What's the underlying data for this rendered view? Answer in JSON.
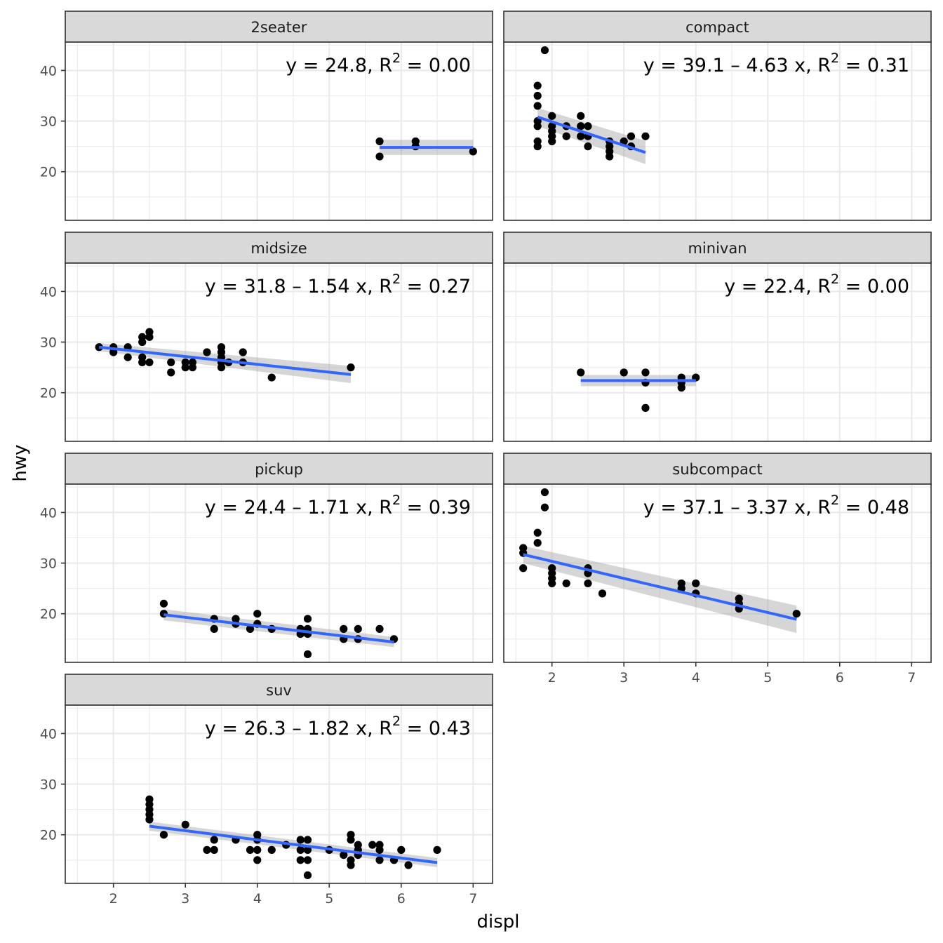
{
  "chart_data": {
    "type": "scatter",
    "xlabel": "displ",
    "ylabel": "hwy",
    "xlim": [
      1.33,
      7.27
    ],
    "ylim": [
      10.4,
      45.6
    ],
    "x_ticks": [
      2,
      3,
      4,
      5,
      6,
      7
    ],
    "y_ticks": [
      20,
      30,
      40
    ],
    "grid": true,
    "facets": [
      {
        "name": "2seater",
        "equation": {
          "main": "y = 24.8, R",
          "sup": "2",
          "tail": " = 0.00"
        },
        "fit": {
          "x": [
            5.7,
            7.0
          ],
          "y": [
            24.8,
            24.8
          ],
          "lo": [
            23.3,
            23.3
          ],
          "hi": [
            26.3,
            26.3
          ]
        },
        "points": [
          [
            5.7,
            26
          ],
          [
            5.7,
            23
          ],
          [
            6.2,
            26
          ],
          [
            6.2,
            25
          ],
          [
            7.0,
            24
          ]
        ]
      },
      {
        "name": "compact",
        "equation": {
          "main": "y = 39.1 – 4.63 x, R",
          "sup": "2",
          "tail": " = 0.31"
        },
        "fit": {
          "x": [
            1.8,
            3.3
          ],
          "y": [
            30.8,
            23.8
          ],
          "lo": [
            29.0,
            21.5
          ],
          "hi": [
            32.6,
            26.1
          ]
        },
        "points": [
          [
            1.9,
            44
          ],
          [
            1.8,
            37
          ],
          [
            1.8,
            35
          ],
          [
            1.8,
            33
          ],
          [
            1.8,
            30
          ],
          [
            1.8,
            29
          ],
          [
            1.8,
            26
          ],
          [
            1.8,
            25
          ],
          [
            2.0,
            31
          ],
          [
            2.0,
            29
          ],
          [
            2.0,
            28
          ],
          [
            2.0,
            27
          ],
          [
            2.0,
            26
          ],
          [
            2.2,
            29
          ],
          [
            2.2,
            27
          ],
          [
            2.4,
            31
          ],
          [
            2.4,
            29
          ],
          [
            2.4,
            27
          ],
          [
            2.5,
            29
          ],
          [
            2.5,
            27
          ],
          [
            2.5,
            25
          ],
          [
            2.8,
            26
          ],
          [
            2.8,
            25
          ],
          [
            2.8,
            24
          ],
          [
            2.8,
            23
          ],
          [
            3.0,
            26
          ],
          [
            3.1,
            27
          ],
          [
            3.1,
            25
          ],
          [
            3.3,
            27
          ]
        ]
      },
      {
        "name": "midsize",
        "equation": {
          "main": "y = 31.8 – 1.54 x, R",
          "sup": "2",
          "tail": " = 0.27"
        },
        "fit": {
          "x": [
            1.8,
            5.3
          ],
          "y": [
            29.0,
            23.6
          ],
          "lo": [
            28.2,
            21.9
          ],
          "hi": [
            29.8,
            25.3
          ]
        },
        "points": [
          [
            1.8,
            29
          ],
          [
            2.0,
            29
          ],
          [
            2.0,
            28
          ],
          [
            2.2,
            29
          ],
          [
            2.2,
            27
          ],
          [
            2.4,
            31
          ],
          [
            2.4,
            30
          ],
          [
            2.4,
            27
          ],
          [
            2.4,
            26
          ],
          [
            2.5,
            32
          ],
          [
            2.5,
            31
          ],
          [
            2.5,
            26
          ],
          [
            2.8,
            26
          ],
          [
            2.8,
            24
          ],
          [
            3.0,
            26
          ],
          [
            3.0,
            25
          ],
          [
            3.1,
            26
          ],
          [
            3.1,
            25
          ],
          [
            3.3,
            28
          ],
          [
            3.5,
            29
          ],
          [
            3.5,
            28
          ],
          [
            3.5,
            27
          ],
          [
            3.5,
            26
          ],
          [
            3.5,
            25
          ],
          [
            3.6,
            26
          ],
          [
            3.8,
            28
          ],
          [
            3.8,
            26
          ],
          [
            4.2,
            23
          ],
          [
            5.3,
            25
          ]
        ]
      },
      {
        "name": "minivan",
        "equation": {
          "main": "y = 22.4, R",
          "sup": "2",
          "tail": " = 0.00"
        },
        "fit": {
          "x": [
            2.4,
            4.0
          ],
          "y": [
            22.4,
            22.4
          ],
          "lo": [
            21.3,
            21.3
          ],
          "hi": [
            23.5,
            23.5
          ]
        },
        "points": [
          [
            2.4,
            24
          ],
          [
            3.0,
            24
          ],
          [
            3.3,
            24
          ],
          [
            3.3,
            22
          ],
          [
            3.3,
            17
          ],
          [
            3.8,
            23
          ],
          [
            3.8,
            22
          ],
          [
            3.8,
            21
          ],
          [
            4.0,
            23
          ]
        ]
      },
      {
        "name": "pickup",
        "equation": {
          "main": "y = 24.4 – 1.71 x, R",
          "sup": "2",
          "tail": " = 0.39"
        },
        "fit": {
          "x": [
            2.7,
            5.9
          ],
          "y": [
            19.8,
            14.4
          ],
          "lo": [
            18.7,
            13.4
          ],
          "hi": [
            20.9,
            15.4
          ]
        },
        "points": [
          [
            2.7,
            22
          ],
          [
            2.7,
            20
          ],
          [
            3.4,
            19
          ],
          [
            3.4,
            17
          ],
          [
            3.7,
            19
          ],
          [
            3.7,
            18
          ],
          [
            3.9,
            17
          ],
          [
            4.0,
            20
          ],
          [
            4.0,
            18
          ],
          [
            4.2,
            17
          ],
          [
            4.6,
            17
          ],
          [
            4.6,
            16
          ],
          [
            4.7,
            19
          ],
          [
            4.7,
            17
          ],
          [
            4.7,
            16
          ],
          [
            4.7,
            12
          ],
          [
            5.2,
            17
          ],
          [
            5.2,
            15
          ],
          [
            5.4,
            17
          ],
          [
            5.4,
            15
          ],
          [
            5.7,
            17
          ],
          [
            5.9,
            15
          ]
        ]
      },
      {
        "name": "subcompact",
        "equation": {
          "main": "y = 37.1 – 3.37 x, R",
          "sup": "2",
          "tail": " = 0.48"
        },
        "fit": {
          "x": [
            1.6,
            5.4
          ],
          "y": [
            31.7,
            18.9
          ],
          "lo": [
            30.0,
            16.2
          ],
          "hi": [
            33.4,
            21.6
          ]
        },
        "points": [
          [
            1.6,
            33
          ],
          [
            1.6,
            32
          ],
          [
            1.6,
            29
          ],
          [
            1.8,
            36
          ],
          [
            1.8,
            34
          ],
          [
            1.9,
            44
          ],
          [
            1.9,
            41
          ],
          [
            2.0,
            29
          ],
          [
            2.0,
            28
          ],
          [
            2.0,
            27
          ],
          [
            2.0,
            26
          ],
          [
            2.2,
            26
          ],
          [
            2.5,
            29
          ],
          [
            2.5,
            28
          ],
          [
            2.5,
            26
          ],
          [
            2.7,
            24
          ],
          [
            3.8,
            26
          ],
          [
            3.8,
            25
          ],
          [
            4.0,
            26
          ],
          [
            4.0,
            24
          ],
          [
            4.6,
            23
          ],
          [
            4.6,
            22
          ],
          [
            4.6,
            21
          ],
          [
            5.4,
            20
          ]
        ]
      },
      {
        "name": "suv",
        "equation": {
          "main": "y = 26.3 – 1.82 x, R",
          "sup": "2",
          "tail": " = 0.43"
        },
        "fit": {
          "x": [
            2.5,
            6.5
          ],
          "y": [
            21.7,
            14.5
          ],
          "lo": [
            20.8,
            13.6
          ],
          "hi": [
            22.6,
            15.4
          ]
        },
        "points": [
          [
            2.5,
            27
          ],
          [
            2.5,
            26
          ],
          [
            2.5,
            25
          ],
          [
            2.5,
            24
          ],
          [
            2.5,
            23
          ],
          [
            2.7,
            20
          ],
          [
            3.0,
            22
          ],
          [
            3.3,
            17
          ],
          [
            3.4,
            19
          ],
          [
            3.4,
            17
          ],
          [
            3.7,
            19
          ],
          [
            3.9,
            17
          ],
          [
            4.0,
            20
          ],
          [
            4.0,
            19
          ],
          [
            4.0,
            17
          ],
          [
            4.0,
            15
          ],
          [
            4.2,
            17
          ],
          [
            4.4,
            18
          ],
          [
            4.6,
            19
          ],
          [
            4.6,
            17
          ],
          [
            4.6,
            15
          ],
          [
            4.7,
            19
          ],
          [
            4.7,
            17
          ],
          [
            4.7,
            15
          ],
          [
            4.7,
            12
          ],
          [
            5.0,
            17
          ],
          [
            5.2,
            16
          ],
          [
            5.3,
            20
          ],
          [
            5.3,
            19
          ],
          [
            5.3,
            15
          ],
          [
            5.3,
            14
          ],
          [
            5.4,
            18
          ],
          [
            5.4,
            17
          ],
          [
            5.4,
            16
          ],
          [
            5.6,
            18
          ],
          [
            5.7,
            18
          ],
          [
            5.7,
            17
          ],
          [
            5.7,
            15
          ],
          [
            5.9,
            15
          ],
          [
            6.0,
            17
          ],
          [
            6.1,
            14
          ],
          [
            6.5,
            17
          ]
        ]
      }
    ]
  }
}
